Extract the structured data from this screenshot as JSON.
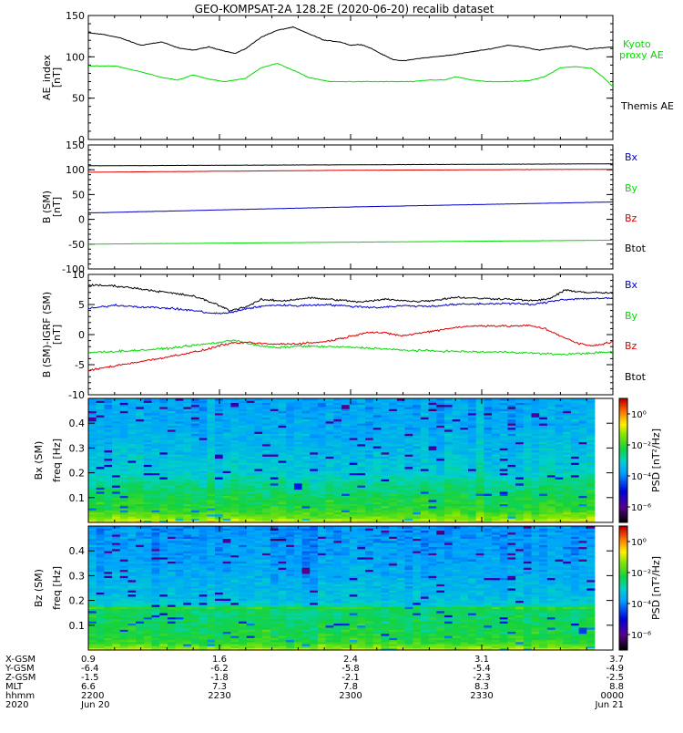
{
  "title": "GEO-KOMPSAT-2A 128.2E (2020-06-20) recalib dataset",
  "colors": {
    "black": "#000000",
    "green": "#00dd00",
    "blue": "#0000cc",
    "red": "#dd0000"
  },
  "chart_data": [
    {
      "type": "line",
      "ylabel": "AE_index [nT]",
      "ylim": [
        0,
        150
      ],
      "yticks": [
        0,
        50,
        100,
        150
      ],
      "x_range": [
        0,
        1
      ],
      "legend": [
        "Kyoto proxy AE",
        "Themis AE"
      ],
      "series": [
        {
          "name": "Themis AE",
          "color": "#000000",
          "x": [
            0,
            0.03,
            0.06,
            0.1,
            0.14,
            0.17,
            0.2,
            0.23,
            0.26,
            0.28,
            0.3,
            0.33,
            0.36,
            0.39,
            0.42,
            0.45,
            0.48,
            0.5,
            0.52,
            0.54,
            0.56,
            0.58,
            0.6,
            0.63,
            0.66,
            0.69,
            0.72,
            0.74,
            0.77,
            0.8,
            0.83,
            0.86,
            0.89,
            0.92,
            0.95,
            0.98,
            1.0
          ],
          "values": [
            129,
            127,
            123,
            114,
            118,
            111,
            108,
            112,
            107,
            104,
            110,
            124,
            132,
            136,
            128,
            120,
            118,
            114,
            115,
            110,
            103,
            97,
            95,
            98,
            100,
            102,
            105,
            107,
            110,
            114,
            112,
            108,
            111,
            113,
            109,
            111,
            112
          ]
        },
        {
          "name": "Kyoto proxy AE",
          "color": "#00dd00",
          "x": [
            0,
            0.05,
            0.1,
            0.14,
            0.17,
            0.2,
            0.23,
            0.26,
            0.3,
            0.33,
            0.36,
            0.39,
            0.42,
            0.46,
            0.5,
            0.54,
            0.58,
            0.62,
            0.65,
            0.68,
            0.7,
            0.73,
            0.76,
            0.8,
            0.84,
            0.87,
            0.9,
            0.93,
            0.96,
            0.98,
            1.0
          ],
          "values": [
            89,
            89,
            82,
            75,
            72,
            78,
            73,
            70,
            74,
            87,
            92,
            84,
            75,
            70,
            70,
            70,
            70,
            70,
            72,
            72,
            76,
            72,
            70,
            70,
            71,
            76,
            87,
            88,
            86,
            76,
            64
          ]
        }
      ]
    },
    {
      "type": "line",
      "ylabel": "B (SM) [nT]",
      "ylim": [
        -100,
        150
      ],
      "yticks": [
        -100,
        -50,
        0,
        50,
        100,
        150
      ],
      "x_range": [
        0,
        1
      ],
      "legend": [
        "Bx",
        "By",
        "Bz",
        "Btot"
      ],
      "series": [
        {
          "name": "Btot",
          "color": "#000000",
          "x": [
            0,
            0.25,
            0.5,
            0.75,
            1.0
          ],
          "values": [
            108,
            109,
            110,
            111,
            112
          ]
        },
        {
          "name": "Bz",
          "color": "#dd0000",
          "x": [
            0,
            0.25,
            0.5,
            0.75,
            1.0
          ],
          "values": [
            95,
            97,
            99,
            100,
            101
          ]
        },
        {
          "name": "Bx",
          "color": "#0000cc",
          "x": [
            0,
            0.25,
            0.5,
            0.75,
            1.0
          ],
          "values": [
            13,
            19,
            25,
            30,
            35
          ]
        },
        {
          "name": "By",
          "color": "#00dd00",
          "x": [
            0,
            0.25,
            0.5,
            0.75,
            1.0
          ],
          "values": [
            -50,
            -48,
            -46,
            -44,
            -42
          ]
        }
      ]
    },
    {
      "type": "line",
      "ylabel": "B (SM)-IGRF (SM) [nT]",
      "ylim": [
        -10,
        10
      ],
      "yticks": [
        -10,
        -5,
        0,
        5,
        10
      ],
      "x_range": [
        0,
        1
      ],
      "legend": [
        "Bx",
        "By",
        "Bz",
        "Btot"
      ],
      "series": [
        {
          "name": "Btot",
          "color": "#000000",
          "x": [
            0,
            0.05,
            0.1,
            0.15,
            0.2,
            0.24,
            0.27,
            0.3,
            0.33,
            0.37,
            0.42,
            0.47,
            0.52,
            0.57,
            0.62,
            0.66,
            0.7,
            0.75,
            0.8,
            0.85,
            0.88,
            0.91,
            0.95,
            1.0
          ],
          "values": [
            8.2,
            8.1,
            7.6,
            7.0,
            6.4,
            5.2,
            4.0,
            4.6,
            5.8,
            5.6,
            6.1,
            5.8,
            5.4,
            5.9,
            5.5,
            5.7,
            6.2,
            6.0,
            5.9,
            5.6,
            6.0,
            7.4,
            7.0,
            6.9
          ]
        },
        {
          "name": "Bx",
          "color": "#0000cc",
          "x": [
            0,
            0.05,
            0.1,
            0.15,
            0.2,
            0.24,
            0.27,
            0.3,
            0.35,
            0.4,
            0.45,
            0.5,
            0.55,
            0.6,
            0.65,
            0.7,
            0.75,
            0.8,
            0.85,
            0.9,
            0.95,
            1.0
          ],
          "values": [
            4.3,
            4.9,
            4.6,
            4.4,
            4.0,
            3.5,
            3.6,
            4.3,
            4.9,
            4.8,
            5.0,
            4.7,
            4.5,
            4.8,
            4.7,
            5.0,
            5.1,
            5.2,
            5.0,
            5.8,
            6.0,
            6.0
          ]
        },
        {
          "name": "By",
          "color": "#00dd00",
          "x": [
            0,
            0.05,
            0.1,
            0.15,
            0.2,
            0.25,
            0.28,
            0.32,
            0.36,
            0.4,
            0.45,
            0.5,
            0.55,
            0.6,
            0.65,
            0.7,
            0.75,
            0.8,
            0.85,
            0.9,
            0.95,
            1.0
          ],
          "values": [
            -3.0,
            -2.8,
            -2.6,
            -2.3,
            -1.8,
            -1.3,
            -0.9,
            -1.8,
            -2.2,
            -1.9,
            -2.0,
            -2.1,
            -2.3,
            -2.6,
            -2.7,
            -2.8,
            -2.9,
            -2.9,
            -3.1,
            -3.3,
            -3.1,
            -2.9
          ]
        },
        {
          "name": "Bz",
          "color": "#dd0000",
          "x": [
            0,
            0.03,
            0.07,
            0.12,
            0.17,
            0.22,
            0.26,
            0.3,
            0.35,
            0.4,
            0.45,
            0.5,
            0.53,
            0.56,
            0.6,
            0.65,
            0.7,
            0.75,
            0.8,
            0.84,
            0.87,
            0.9,
            0.93,
            0.96,
            1.0
          ],
          "values": [
            -6.0,
            -5.5,
            -4.9,
            -4.2,
            -3.4,
            -2.6,
            -1.6,
            -1.3,
            -1.6,
            -1.5,
            -1.2,
            -0.3,
            0.4,
            0.3,
            -0.2,
            0.5,
            1.2,
            1.5,
            1.4,
            1.5,
            1.0,
            -0.2,
            -1.4,
            -1.9,
            -1.2
          ]
        }
      ]
    },
    {
      "type": "heatmap",
      "ylabel": "Bx (SM) freq [Hz]",
      "ylim": [
        0,
        0.5
      ],
      "yticks": [
        0.1,
        0.2,
        0.3,
        0.4
      ],
      "colorbar_label": "PSD [nT²/Hz]",
      "colorbar_ticks": [
        "10⁰",
        "10⁻²",
        "10⁻⁴",
        "10⁻⁶"
      ],
      "colorbar_log10_range": [
        -7,
        1
      ],
      "columns": 64,
      "rows": 60,
      "profile_log10_psd": [
        [
          0.0,
          -0.5
        ],
        [
          0.01,
          -1.0
        ],
        [
          0.02,
          -1.4
        ],
        [
          0.05,
          -2.0
        ],
        [
          0.1,
          -2.3
        ],
        [
          0.15,
          -2.6
        ],
        [
          0.175,
          -2.8
        ],
        [
          0.2,
          -3.1
        ],
        [
          0.3,
          -3.4
        ],
        [
          0.4,
          -3.6
        ],
        [
          0.5,
          -3.7
        ]
      ]
    },
    {
      "type": "heatmap",
      "ylabel": "Bz (SM) freq [Hz]",
      "ylim": [
        0,
        0.5
      ],
      "yticks": [
        0.1,
        0.2,
        0.3,
        0.4
      ],
      "colorbar_label": "PSD [nT²/Hz]",
      "colorbar_ticks": [
        "10⁰",
        "10⁻²",
        "10⁻⁴",
        "10⁻⁶"
      ],
      "colorbar_log10_range": [
        -7,
        1
      ],
      "columns": 64,
      "rows": 60,
      "profile_log10_psd": [
        [
          0.0,
          -0.6
        ],
        [
          0.01,
          -1.3
        ],
        [
          0.03,
          -2.0
        ],
        [
          0.08,
          -2.3
        ],
        [
          0.16,
          -2.5
        ],
        [
          0.17,
          -1.9
        ],
        [
          0.175,
          -2.9
        ],
        [
          0.2,
          -3.3
        ],
        [
          0.3,
          -3.6
        ],
        [
          0.4,
          -3.8
        ],
        [
          0.5,
          -3.9
        ]
      ]
    }
  ],
  "x_axis": {
    "row_labels": [
      "X-GSM",
      "Y-GSM",
      "Z-GSM",
      "MLT",
      "hhmm",
      "2020"
    ],
    "columns": [
      {
        "pos": 0.0,
        "values": [
          "0.9",
          "-6.4",
          "-1.5",
          "6.6",
          "2200",
          "Jun 20"
        ]
      },
      {
        "pos": 0.25,
        "values": [
          "1.6",
          "-6.2",
          "-1.8",
          "7.3",
          "2230",
          ""
        ]
      },
      {
        "pos": 0.5,
        "values": [
          "2.4",
          "-5.8",
          "-2.1",
          "7.8",
          "2300",
          ""
        ]
      },
      {
        "pos": 0.75,
        "values": [
          "3.1",
          "-5.4",
          "-2.3",
          "8.3",
          "2330",
          ""
        ]
      },
      {
        "pos": 1.0,
        "values": [
          "3.7",
          "-4.9",
          "-2.5",
          "8.8",
          "0000",
          "Jun 21"
        ]
      }
    ]
  }
}
